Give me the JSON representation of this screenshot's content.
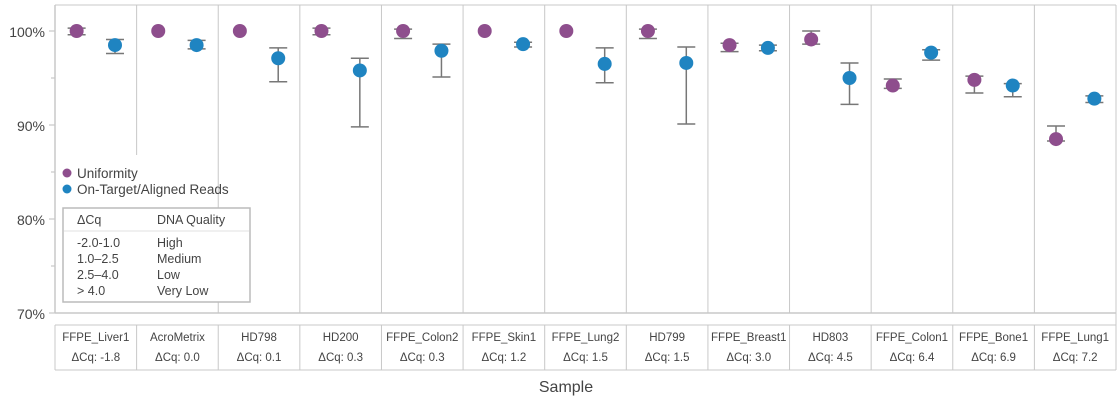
{
  "chart_data": {
    "type": "scatter",
    "title": "",
    "xlabel": "Sample",
    "ylabel": "",
    "ylim": [
      70,
      100
    ],
    "y_ticks": [
      "100%",
      "90%",
      "80%",
      "70%"
    ],
    "y_tick_values": [
      100,
      90,
      80,
      70
    ],
    "grid": false,
    "legend_position": "left",
    "categories": [
      "FFPE_Liver1",
      "AcroMetrix",
      "HD798",
      "HD200",
      "FFPE_Colon2",
      "FFPE_Skin1",
      "FFPE_Lung2",
      "HD799",
      "FFPE_Breast1",
      "HD803",
      "FFPE_Colon1",
      "FFPE_Bone1",
      "FFPE_Lung1"
    ],
    "delta_cq_labels": [
      "ΔCq: -1.8",
      "ΔCq: 0.0",
      "ΔCq: 0.1",
      "ΔCq: 0.3",
      "ΔCq: 0.3",
      "ΔCq: 1.2",
      "ΔCq: 1.5",
      "ΔCq: 1.5",
      "ΔCq: 3.0",
      "ΔCq: 4.5",
      "ΔCq: 6.4",
      "ΔCq: 6.9",
      "ΔCq: 7.2"
    ],
    "series": [
      {
        "name": "Uniformity",
        "color": "#8e4e8d",
        "values": [
          100.0,
          100.0,
          100.0,
          100.0,
          100.0,
          100.0,
          100.0,
          100.0,
          98.5,
          99.1,
          94.2,
          94.8,
          88.5
        ],
        "err_low": [
          99.6,
          100.0,
          100.0,
          99.6,
          99.2,
          100.0,
          100.0,
          99.2,
          97.8,
          98.6,
          93.9,
          93.4,
          88.3
        ],
        "err_high": [
          100.3,
          100.0,
          100.0,
          100.3,
          100.2,
          100.0,
          100.0,
          100.2,
          98.7,
          100.0,
          94.9,
          95.2,
          89.9
        ]
      },
      {
        "name": "On-Target/Aligned Reads",
        "color": "#1f84c1",
        "values": [
          98.5,
          98.5,
          97.1,
          95.8,
          97.9,
          98.6,
          96.5,
          96.6,
          98.2,
          95.0,
          97.7,
          94.2,
          92.8
        ],
        "err_low": [
          97.6,
          98.1,
          94.6,
          89.8,
          95.1,
          98.3,
          94.5,
          90.1,
          97.9,
          92.2,
          96.9,
          93.0,
          92.4
        ],
        "err_high": [
          99.1,
          99.0,
          98.2,
          97.1,
          98.6,
          98.8,
          98.2,
          98.3,
          98.5,
          96.6,
          98.0,
          94.4,
          93.1
        ]
      }
    ]
  },
  "quality_table": {
    "header_cq": "ΔCq",
    "header_quality": "DNA Quality",
    "rows": [
      {
        "range": "-2.0-1.0",
        "quality": "High"
      },
      {
        "range": "1.0–2.5",
        "quality": "Medium"
      },
      {
        "range": "2.5–4.0",
        "quality": "Low"
      },
      {
        "range": "> 4.0",
        "quality": "Very Low"
      }
    ]
  }
}
